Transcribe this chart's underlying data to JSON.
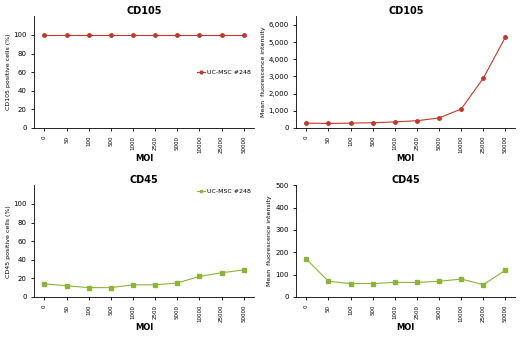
{
  "moi_labels": [
    "0",
    "50",
    "100",
    "500",
    "1000",
    "2500",
    "5000",
    "10000",
    "25000",
    "50000"
  ],
  "moi_values": [
    0,
    50,
    100,
    500,
    1000,
    2500,
    5000,
    10000,
    25000,
    50000
  ],
  "cd105_pct": [
    100,
    100,
    100,
    100,
    100,
    100,
    100,
    100,
    100,
    100
  ],
  "cd105_mfi": [
    280,
    260,
    280,
    300,
    350,
    420,
    580,
    1100,
    2900,
    5300
  ],
  "cd45_pct": [
    14,
    12,
    10,
    10,
    13,
    13,
    15,
    22,
    26,
    29
  ],
  "cd45_mfi": [
    170,
    70,
    60,
    60,
    65,
    65,
    70,
    80,
    55,
    120
  ],
  "red_color": "#c0392b",
  "green_color": "#8db33a",
  "cd105_pct_ylim": [
    0,
    120
  ],
  "cd105_pct_yticks": [
    0,
    20,
    40,
    60,
    80,
    100
  ],
  "cd105_mfi_ylim": [
    0,
    6500
  ],
  "cd105_mfi_yticks": [
    0,
    1000,
    2000,
    3000,
    4000,
    5000,
    6000
  ],
  "cd45_pct_ylim": [
    0,
    120
  ],
  "cd45_pct_yticks": [
    0,
    20,
    40,
    60,
    80,
    100
  ],
  "cd45_mfi_ylim": [
    0,
    500
  ],
  "cd45_mfi_yticks": [
    0,
    100,
    200,
    300,
    400,
    500
  ],
  "legend_cd105": "UC-MSC #248",
  "legend_cd45": "UC-MSC #248",
  "title_cd105": "CD105",
  "title_cd45": "CD45",
  "xlabel": "MOI",
  "ylabel_pct_cd105": "CD105 positive cells (%)",
  "ylabel_pct_cd45": "CD45 positive cells (%)",
  "ylabel_mfi": "Mean  fluorescence intensity",
  "bg_color": "#ffffff"
}
